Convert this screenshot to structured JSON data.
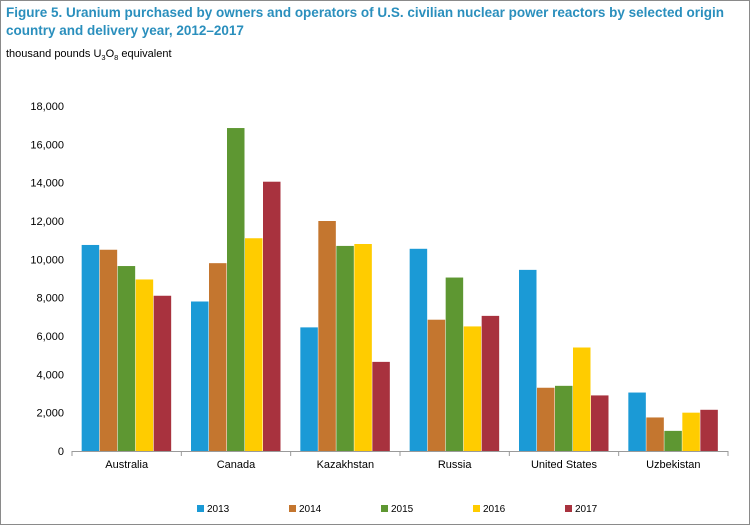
{
  "header": {
    "title": "Figure 5. Uranium purchased by owners and operators of U.S. civilian nuclear power reactors by selected origin country and delivery year, 2012–2017",
    "unit_prefix": "thousand pounds U",
    "unit_sub1": "3",
    "unit_mid": "O",
    "unit_sub2": "8",
    "unit_suffix": " equivalent"
  },
  "chart_data": {
    "type": "bar",
    "title": "Figure 5. Uranium purchased by owners and operators of U.S. civilian nuclear power reactors by selected origin country and delivery year, 2012–2017",
    "ylabel": "thousand pounds U3O8 equivalent",
    "xlabel": "",
    "ylim": [
      0,
      18000
    ],
    "yticks": [
      0,
      2000,
      4000,
      6000,
      8000,
      10000,
      12000,
      14000,
      16000,
      18000
    ],
    "ytick_labels": [
      "0",
      "2,000",
      "4,000",
      "6,000",
      "8,000",
      "10,000",
      "12,000",
      "14,000",
      "16,000",
      "18,000"
    ],
    "grid": false,
    "legend_position": "bottom",
    "categories": [
      "Australia",
      "Canada",
      "Kazakhstan",
      "Russia",
      "United States",
      "Uzbekistan"
    ],
    "series": [
      {
        "name": "2013",
        "color": "#1b9ad6",
        "values": [
          10750,
          7800,
          6450,
          10550,
          9450,
          3050
        ]
      },
      {
        "name": "2014",
        "color": "#c4762f",
        "values": [
          10500,
          9800,
          12000,
          6850,
          3300,
          1750
        ]
      },
      {
        "name": "2015",
        "color": "#5e9732",
        "values": [
          9650,
          16850,
          10700,
          9050,
          3400,
          1050
        ]
      },
      {
        "name": "2016",
        "color": "#ffcc00",
        "values": [
          8950,
          11100,
          10800,
          6500,
          5400,
          2000
        ]
      },
      {
        "name": "2017",
        "color": "#a8323e",
        "values": [
          8100,
          14050,
          4650,
          7050,
          2900,
          2150
        ]
      }
    ]
  }
}
